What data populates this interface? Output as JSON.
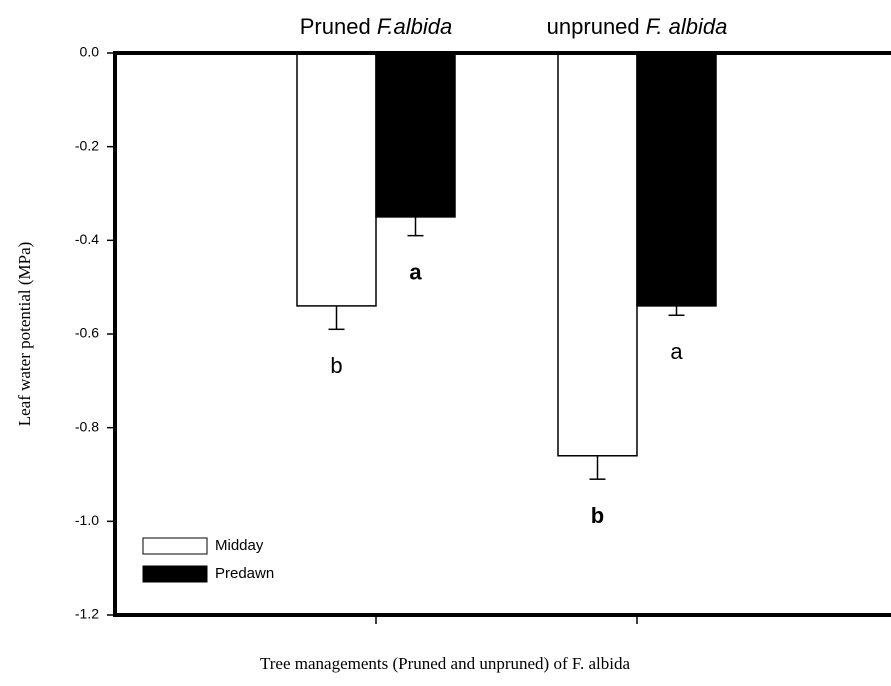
{
  "chart_data": {
    "type": "bar",
    "categories": [
      "Pruned F.albida",
      "unpruned F. albida"
    ],
    "series": [
      {
        "name": "Midday",
        "color": "#ffffff",
        "values": [
          -0.54,
          -0.86
        ],
        "errors": [
          0.05,
          0.05
        ],
        "letters": [
          "b",
          "b"
        ]
      },
      {
        "name": "Predawn",
        "color": "#000000",
        "values": [
          -0.35,
          -0.54
        ],
        "errors": [
          0.04,
          0.02
        ],
        "letters": [
          "a",
          "a"
        ]
      }
    ],
    "xlabel": "Tree managements (Pruned and unpruned) of F. albida",
    "ylabel": "Leaf water potential (MPa)",
    "ylim": [
      -1.2,
      0
    ],
    "yticks": [
      {
        "value": 0,
        "label": "0.0"
      },
      {
        "value": -0.2,
        "label": "-0.2"
      },
      {
        "value": -0.4,
        "label": "-0.4"
      },
      {
        "value": -0.6,
        "label": "-0.6"
      },
      {
        "value": -0.8,
        "label": "-0.8"
      },
      {
        "value": -1,
        "label": "-1.0"
      },
      {
        "value": -1.2,
        "label": "-1.2"
      }
    ],
    "legend": "lower left"
  }
}
